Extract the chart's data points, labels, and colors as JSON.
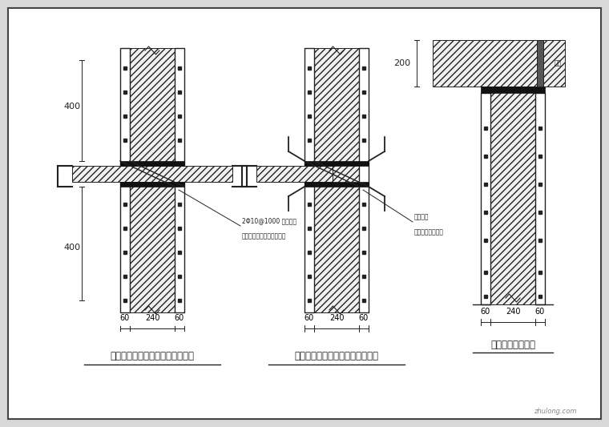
{
  "bg_color": "#f0f0f0",
  "border_color": "#555555",
  "line_color": "#222222",
  "title1": "加固墙体在楼面处做法（板短向）",
  "title2": "加固墙体在楼面处做法（板长向）",
  "title3": "加固墙体顶层做法",
  "note1a": "2Φ10@1000 穿墙锚条",
  "note1b": "不宜直接钩小组距构造做法",
  "note2a": "穿墙锚条",
  "note2b": "满布双面防渗浆处",
  "dim_400a": "400",
  "dim_400b": "400",
  "dim_200": "200",
  "wm": "zhulong.com"
}
